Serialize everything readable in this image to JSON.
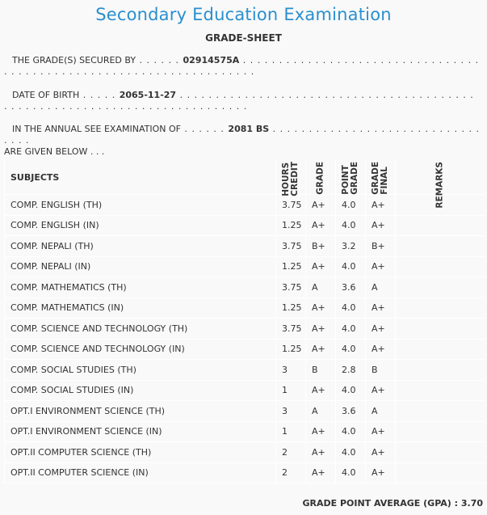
{
  "title": "Secondary Education Examination",
  "subtitle": "GRADE-SHEET",
  "secured_by": {
    "label": "THE GRADE(S) SECURED BY",
    "lead": " . . . . . . ",
    "value": "02914575A",
    "trail": " . . . . . . . . . . . . . . . . . . . . . . . . . . . . . . . . . . . . . . . . . . . . . . . . . . . . . . . . . . . . . . . . . . . ."
  },
  "dob": {
    "label": "DATE OF BIRTH",
    "lead": " . . . . . ",
    "value": "2065-11-27",
    "trail": " . . . . . . . . . . . . . . . . . . . . . . . . . . . . . . . . . . . . . . . . . . . . . . . . . . . . . . . . . . . . . . . . . . . . . . . . . . ."
  },
  "exam": {
    "label": "IN THE ANNUAL SEE EXAMINATION OF",
    "lead": " . . . . . . ",
    "value": "2081 BS",
    "trail": " . . . . . . . . . . . . . . . . . . . . . . . . . . . . . . . . .",
    "tail": "ARE GIVEN BELOW . . ."
  },
  "table": {
    "headers": {
      "subjects": "SUBJECTS",
      "credit": [
        "CREDIT",
        "HOURS"
      ],
      "grade": [
        "GRADE"
      ],
      "point": [
        "GRADE",
        "POINT"
      ],
      "final": [
        "FINAL",
        "GRADE"
      ],
      "remarks": [
        "REMARKS"
      ]
    },
    "rows": [
      {
        "subject": "COMP. ENGLISH (TH)",
        "credit": "3.75",
        "grade": "A+",
        "point": "4.0",
        "final": "A+",
        "remarks": ""
      },
      {
        "subject": "COMP. ENGLISH (IN)",
        "credit": "1.25",
        "grade": "A+",
        "point": "4.0",
        "final": "A+",
        "remarks": ""
      },
      {
        "subject": "COMP. NEPALI (TH)",
        "credit": "3.75",
        "grade": "B+",
        "point": "3.2",
        "final": "B+",
        "remarks": ""
      },
      {
        "subject": "COMP. NEPALI (IN)",
        "credit": "1.25",
        "grade": "A+",
        "point": "4.0",
        "final": "A+",
        "remarks": ""
      },
      {
        "subject": "COMP. MATHEMATICS (TH)",
        "credit": "3.75",
        "grade": "A",
        "point": "3.6",
        "final": "A",
        "remarks": ""
      },
      {
        "subject": "COMP. MATHEMATICS (IN)",
        "credit": "1.25",
        "grade": "A+",
        "point": "4.0",
        "final": "A+",
        "remarks": ""
      },
      {
        "subject": "COMP. SCIENCE AND TECHNOLOGY (TH)",
        "credit": "3.75",
        "grade": "A+",
        "point": "4.0",
        "final": "A+",
        "remarks": ""
      },
      {
        "subject": "COMP. SCIENCE AND TECHNOLOGY (IN)",
        "credit": "1.25",
        "grade": "A+",
        "point": "4.0",
        "final": "A+",
        "remarks": ""
      },
      {
        "subject": "COMP. SOCIAL STUDIES (TH)",
        "credit": "3",
        "grade": "B",
        "point": "2.8",
        "final": "B",
        "remarks": ""
      },
      {
        "subject": "COMP. SOCIAL STUDIES (IN)",
        "credit": "1",
        "grade": "A+",
        "point": "4.0",
        "final": "A+",
        "remarks": ""
      },
      {
        "subject": "OPT.I ENVIRONMENT SCIENCE (TH)",
        "credit": "3",
        "grade": "A",
        "point": "3.6",
        "final": "A",
        "remarks": ""
      },
      {
        "subject": "OPT.I ENVIRONMENT SCIENCE (IN)",
        "credit": "1",
        "grade": "A+",
        "point": "4.0",
        "final": "A+",
        "remarks": ""
      },
      {
        "subject": "OPT.II COMPUTER SCIENCE (TH)",
        "credit": "2",
        "grade": "A+",
        "point": "4.0",
        "final": "A+",
        "remarks": ""
      },
      {
        "subject": "OPT.II COMPUTER SCIENCE (IN)",
        "credit": "2",
        "grade": "A+",
        "point": "4.0",
        "final": "A+",
        "remarks": ""
      }
    ]
  },
  "gpa": {
    "label": "GRADE POINT AVERAGE (GPA) :",
    "value": "3.70"
  }
}
